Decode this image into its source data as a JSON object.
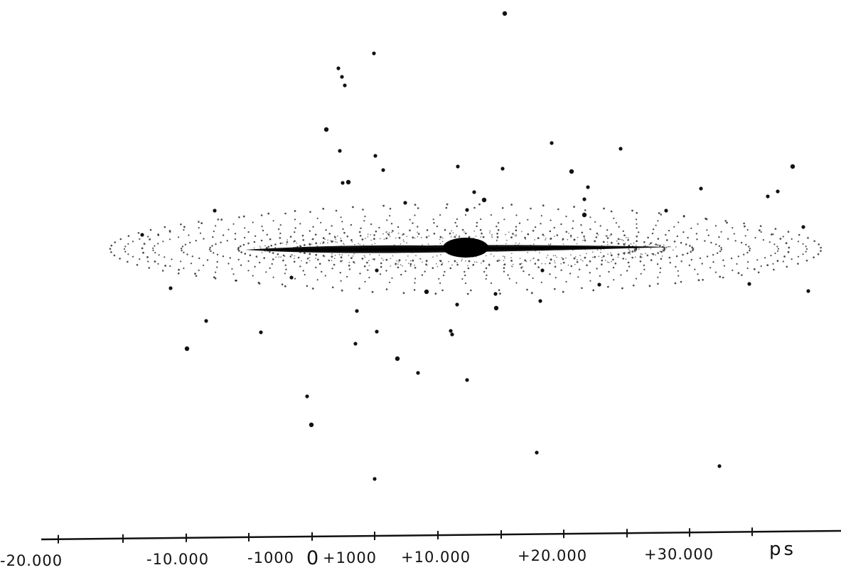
{
  "colors": {
    "ink": "#111111",
    "paper": "#ffffff"
  },
  "axis": {
    "unit": "ps",
    "tick_labels": [
      "-20.000",
      "-10.000",
      "-1000",
      "0",
      "+1000",
      "+10.000",
      "+20.000",
      "+30.000"
    ]
  },
  "features": [
    "central-bulge",
    "thin-dark-disk",
    "dotted-halo-ellipse",
    "globular-clusters"
  ]
}
